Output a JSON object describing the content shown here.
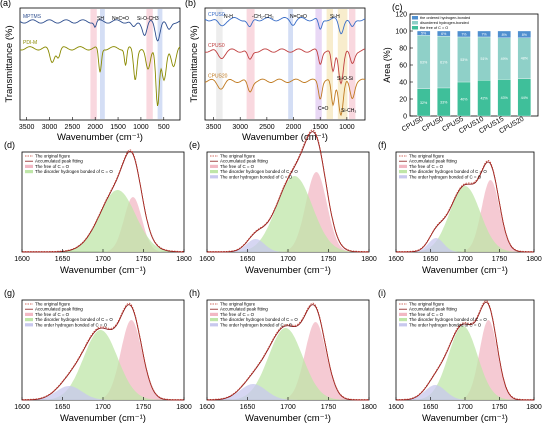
{
  "figure": {
    "panels": [
      {
        "id": "a",
        "label": "(a)",
        "xlabel": "Wavenumber (cm⁻¹)",
        "ylabel": "Transmittance (%)",
        "xticks": [
          "3500",
          "3000",
          "2500",
          "2000",
          "1500",
          "1000",
          "500"
        ],
        "series": [
          "MPTMS",
          "PDI-M"
        ],
        "annotations": [
          "SH",
          "N=C=O",
          "Si-O-CH3"
        ]
      },
      {
        "id": "b",
        "label": "(b)",
        "xlabel": "Wavenumber (cm⁻¹)",
        "ylabel": "Transmittance (%)",
        "xticks": [
          "3500",
          "3000",
          "2500",
          "2000",
          "1500",
          "1000"
        ],
        "series": [
          "CPUS0",
          "CPUS0",
          "CPUS20"
        ],
        "annotations": [
          "N-H",
          "-CH₂-CH₂",
          "N=C=O",
          "Si-H",
          "C=O",
          "Si-O-Si",
          "Si-CH₃"
        ]
      },
      {
        "id": "c",
        "label": "(c)",
        "ylabel": "Area (%)",
        "yticks": [
          "0",
          "20",
          "40",
          "60",
          "80",
          "100",
          "120"
        ],
        "legend": [
          "the ordered hydrogen-bonded",
          "disordered hydrogen-bonded",
          "the free of C = O"
        ]
      },
      {
        "id": "d",
        "label": "(d)",
        "xlabel": "Wavenumber (cm⁻¹)",
        "legend": [
          "The original figure",
          "Accumulated peak fitting",
          "The free of C = O",
          "The disorder hydrogen bonded of C = O"
        ]
      },
      {
        "id": "e",
        "label": "(e)",
        "xlabel": "Wavenumber (cm⁻¹)",
        "legend": [
          "The original figure",
          "Accumulated peak fitting",
          "The free of C = O",
          "The disorder hydrogen bonded of C = O",
          "The order hydrogen bonded of C = O"
        ]
      },
      {
        "id": "f",
        "label": "(f)",
        "xlabel": "Wavenumber (cm⁻¹)",
        "legend": [
          "The original figure",
          "Accumulated peak fitting",
          "The free of C = O",
          "The disorder hydrogen bonded of C = O",
          "The order hydrogen bonded of C = O"
        ]
      },
      {
        "id": "g",
        "label": "(g)",
        "xlabel": "Wavenumber (cm⁻¹)",
        "legend": [
          "The original figure",
          "Accumulated peak fitting",
          "The free of C = O",
          "The disorder hydrogen bonded of C = O",
          "The order hydrogen bonded of C = O"
        ]
      },
      {
        "id": "h",
        "label": "(h)",
        "xlabel": "Wavenumber (cm⁻¹)",
        "legend": [
          "The original figure",
          "Accumulated peak fitting",
          "The free of C = O",
          "The disorder hydrogen bonded of C = O",
          "The order hydrogen bonded of C = O"
        ]
      },
      {
        "id": "i",
        "label": "(i)",
        "xlabel": "Wavenumber (cm⁻¹)",
        "legend": [
          "The original figure",
          "Accumulated peak fitting",
          "The free of C = O",
          "The disorder hydrogen bonded of C = O",
          "The order hydrogen bonded of C = O"
        ]
      }
    ],
    "colors": {
      "ordered": "#4f8fcf",
      "disordered": "#8fd0c8",
      "free": "#3fbf9a",
      "fit_free": "#f2b8c4",
      "fit_disorder": "#bfe6a8",
      "fit_order": "#c8c8ee",
      "original": "#c0392b",
      "accum": "#8b1a1a"
    }
  },
  "chart_data": [
    {
      "type": "line",
      "panel": "a",
      "series": [
        {
          "name": "MPTMS"
        },
        {
          "name": "PDI-M"
        }
      ],
      "xlim": [
        3800,
        500
      ]
    },
    {
      "type": "line",
      "panel": "b",
      "series": [
        {
          "name": "CPUS0"
        },
        {
          "name": "CPUS0"
        },
        {
          "name": "CPUS20"
        }
      ],
      "xlim": [
        3800,
        500
      ]
    },
    {
      "type": "bar",
      "panel": "c",
      "stacked": true,
      "categories": [
        "CPUS0",
        "CPUS0",
        "CPUS5",
        "CPUS10",
        "CPUS15",
        "CPUS20"
      ],
      "ylim": [
        0,
        120
      ],
      "series": [
        {
          "name": "the free of C = O",
          "values": [
            32,
            33,
            40,
            42,
            43,
            44
          ],
          "labels": [
            "32%",
            "33%",
            "40%",
            "42%",
            "43%",
            "44%"
          ]
        },
        {
          "name": "disordered hydrogen-bonded",
          "values": [
            63,
            61,
            53,
            51,
            49,
            48
          ],
          "labels": [
            "63%",
            "61%",
            "53%",
            "51%",
            "49%",
            "48%"
          ]
        },
        {
          "name": "the ordered hydrogen-bonded",
          "values": [
            5,
            6,
            7,
            7,
            8,
            8
          ],
          "labels": [
            "5%",
            "6%",
            "7%",
            "7%",
            "8%",
            "8%"
          ]
        }
      ]
    },
    {
      "type": "area",
      "panel": "d",
      "xlim": [
        1600,
        1800
      ],
      "xticks": [
        1600,
        1650,
        1700,
        1750,
        1800
      ],
      "components": [
        {
          "name": "The free of C = O",
          "center": 1737,
          "width": 11,
          "height": 0.55
        },
        {
          "name": "The disorder hydrogen bonded of C = O",
          "center": 1718,
          "width": 22,
          "height": 0.62
        }
      ],
      "original_peak": 1733
    },
    {
      "type": "area",
      "panel": "e",
      "xlim": [
        1600,
        1800
      ],
      "xticks": [
        1600,
        1650,
        1700,
        1750,
        1800
      ],
      "components": [
        {
          "name": "The free of C = O",
          "center": 1735,
          "width": 13,
          "height": 0.8
        },
        {
          "name": "The disorder hydrogen bonded of C = O",
          "center": 1708,
          "width": 22,
          "height": 0.76
        },
        {
          "name": "The order hydrogen bonded of C = O",
          "center": 1660,
          "width": 11,
          "height": 0.13
        }
      ]
    },
    {
      "type": "area",
      "panel": "f",
      "xlim": [
        1600,
        1800
      ],
      "xticks": [
        1600,
        1650,
        1700,
        1750,
        1800
      ],
      "components": [
        {
          "name": "The free of C = O",
          "center": 1737,
          "width": 13,
          "height": 0.72
        },
        {
          "name": "The disorder hydrogen bonded of C = O",
          "center": 1700,
          "width": 22,
          "height": 0.66
        },
        {
          "name": "The order hydrogen bonded of C = O",
          "center": 1658,
          "width": 11,
          "height": 0.14
        }
      ]
    },
    {
      "type": "area",
      "panel": "g",
      "xlim": [
        1600,
        1800
      ],
      "xticks": [
        1600,
        1650,
        1700,
        1750,
        1800
      ],
      "components": [
        {
          "name": "The free of C = O",
          "center": 1735,
          "width": 13,
          "height": 0.8
        },
        {
          "name": "The disorder hydrogen bonded of C = O",
          "center": 1697,
          "width": 21,
          "height": 0.7
        },
        {
          "name": "The order hydrogen bonded of C = O",
          "center": 1658,
          "width": 16,
          "height": 0.14
        }
      ]
    },
    {
      "type": "area",
      "panel": "h",
      "xlim": [
        1600,
        1800
      ],
      "xticks": [
        1600,
        1650,
        1700,
        1750,
        1800
      ],
      "components": [
        {
          "name": "The free of C = O",
          "center": 1734,
          "width": 13,
          "height": 0.78
        },
        {
          "name": "The disorder hydrogen bonded of C = O",
          "center": 1697,
          "width": 21,
          "height": 0.72
        },
        {
          "name": "The order hydrogen bonded of C = O",
          "center": 1657,
          "width": 16,
          "height": 0.16
        }
      ]
    },
    {
      "type": "area",
      "panel": "i",
      "xlim": [
        1600,
        1800
      ],
      "xticks": [
        1600,
        1650,
        1700,
        1750,
        1800
      ],
      "components": [
        {
          "name": "The free of C = O",
          "center": 1734,
          "width": 13,
          "height": 0.8
        },
        {
          "name": "The disorder hydrogen bonded of C = O",
          "center": 1697,
          "width": 21,
          "height": 0.74
        },
        {
          "name": "The order hydrogen bonded of C = O",
          "center": 1657,
          "width": 15,
          "height": 0.15
        }
      ]
    }
  ]
}
